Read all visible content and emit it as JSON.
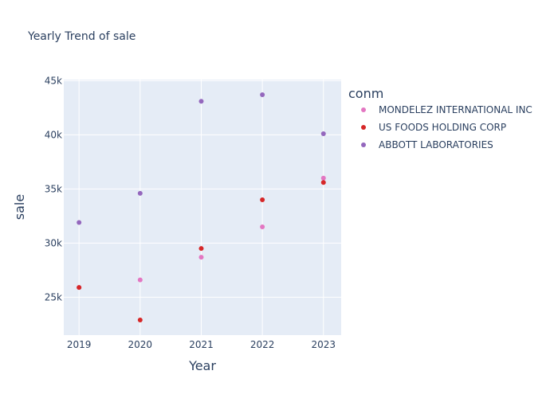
{
  "chart_data": {
    "type": "scatter",
    "title": "Yearly Trend of sale",
    "xlabel": "Year",
    "ylabel": "sale",
    "legend_title": "conm",
    "legend_position": "top-right",
    "grid": true,
    "x_ticks": [
      2019,
      2020,
      2021,
      2022,
      2023
    ],
    "x_tick_labels": [
      "2019",
      "2020",
      "2021",
      "2022",
      "2023"
    ],
    "y_ticks": [
      25000,
      30000,
      35000,
      40000,
      45000
    ],
    "y_tick_labels": [
      "25k",
      "30k",
      "35k",
      "40k",
      "45k"
    ],
    "xlim": [
      2018.75,
      2023.29
    ],
    "ylim": [
      21500,
      45100
    ],
    "series": [
      {
        "name": "MONDELEZ INTERNATIONAL INC",
        "color": "#e377c2",
        "x": [
          2019,
          2020,
          2021,
          2022,
          2023
        ],
        "y": [
          25900,
          26600,
          28700,
          31500,
          36000
        ]
      },
      {
        "name": "US FOODS HOLDING CORP",
        "color": "#d62728",
        "x": [
          2019,
          2020,
          2021,
          2022,
          2023
        ],
        "y": [
          25900,
          22900,
          29500,
          34000,
          35600
        ]
      },
      {
        "name": "ABBOTT LABORATORIES",
        "color": "#9467bd",
        "x": [
          2019,
          2020,
          2021,
          2022,
          2023
        ],
        "y": [
          31900,
          34600,
          43100,
          43700,
          40100
        ]
      }
    ]
  }
}
